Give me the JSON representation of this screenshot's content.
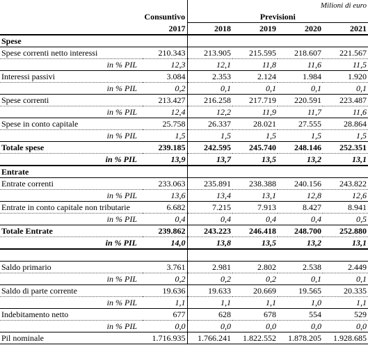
{
  "header": {
    "unit": "Milioni di euro",
    "actual": "Consuntivo",
    "forecast": "Previsioni",
    "years": [
      "2017",
      "2018",
      "2019",
      "2020",
      "2021"
    ]
  },
  "sections": [
    {
      "title": "Spese",
      "rows": [
        {
          "label": "Spese correnti netto interessi",
          "values": [
            "210.343",
            "213.905",
            "215.595",
            "218.607",
            "221.567"
          ],
          "pct_label": "in % PIL",
          "pct": [
            "12,3",
            "12,1",
            "11,8",
            "11,6",
            "11,5"
          ]
        },
        {
          "label": "Interessi passivi",
          "values": [
            "3.084",
            "2.353",
            "2.124",
            "1.984",
            "1.920"
          ],
          "pct_label": "in % PIL",
          "pct": [
            "0,2",
            "0,1",
            "0,1",
            "0,1",
            "0,1"
          ]
        },
        {
          "label": "Spese correnti",
          "values": [
            "213.427",
            "216.258",
            "217.719",
            "220.591",
            "223.487"
          ],
          "pct_label": "in % PIL",
          "pct": [
            "12,4",
            "12,2",
            "11,9",
            "11,7",
            "11,6"
          ]
        },
        {
          "label": "Spese in conto capitale",
          "values": [
            "25.758",
            "26.337",
            "28.021",
            "27.555",
            "28.864"
          ],
          "pct_label": "in % PIL",
          "pct": [
            "1,5",
            "1,5",
            "1,5",
            "1,5",
            "1,5"
          ]
        },
        {
          "label": "Totale spese",
          "total": true,
          "values": [
            "239.185",
            "242.595",
            "245.740",
            "248.146",
            "252.351"
          ],
          "pct_label": "in % PIL",
          "pct": [
            "13,9",
            "13,7",
            "13,5",
            "13,2",
            "13,1"
          ]
        }
      ]
    },
    {
      "title": "Entrate",
      "rows": [
        {
          "label": "Entrate correnti",
          "values": [
            "233.063",
            "235.891",
            "238.388",
            "240.156",
            "243.822"
          ],
          "pct_label": "in % PIL",
          "pct": [
            "13,6",
            "13,4",
            "13,1",
            "12,8",
            "12,6"
          ]
        },
        {
          "label": "Entrate in conto capitale non tributarie",
          "values": [
            "6.682",
            "7.215",
            "7.913",
            "8.427",
            "8.941"
          ],
          "pct_label": "in % PIL",
          "pct": [
            "0,4",
            "0,4",
            "0,4",
            "0,4",
            "0,5"
          ]
        },
        {
          "label": "Totale Entrate",
          "total": true,
          "values": [
            "239.862",
            "243.223",
            "246.418",
            "248.700",
            "252.880"
          ],
          "pct_label": "in % PIL",
          "pct": [
            "14,0",
            "13,8",
            "13,5",
            "13,2",
            "13,1"
          ]
        }
      ]
    },
    {
      "rows": [
        {
          "label": "Saldo primario",
          "values": [
            "3.761",
            "2.981",
            "2.802",
            "2.538",
            "2.449"
          ],
          "pct_label": "in % PIL",
          "pct": [
            "0,2",
            "0,2",
            "0,2",
            "0,1",
            "0,1"
          ]
        },
        {
          "label": "Saldo di parte corrente",
          "values": [
            "19.636",
            "19.633",
            "20.669",
            "19.565",
            "20.335"
          ],
          "pct_label": "in % PIL",
          "pct": [
            "1,1",
            "1,1",
            "1,1",
            "1,0",
            "1,1"
          ]
        },
        {
          "label": "Indebitamento netto",
          "values": [
            "677",
            "628",
            "678",
            "554",
            "529"
          ],
          "pct_label": "in % PIL",
          "pct": [
            "0,0",
            "0,0",
            "0,0",
            "0,0",
            "0,0"
          ]
        },
        {
          "label": "Pil nominale",
          "values": [
            "1.716.935",
            "1.766.241",
            "1.822.552",
            "1.878.205",
            "1.928.685"
          ]
        }
      ]
    }
  ]
}
